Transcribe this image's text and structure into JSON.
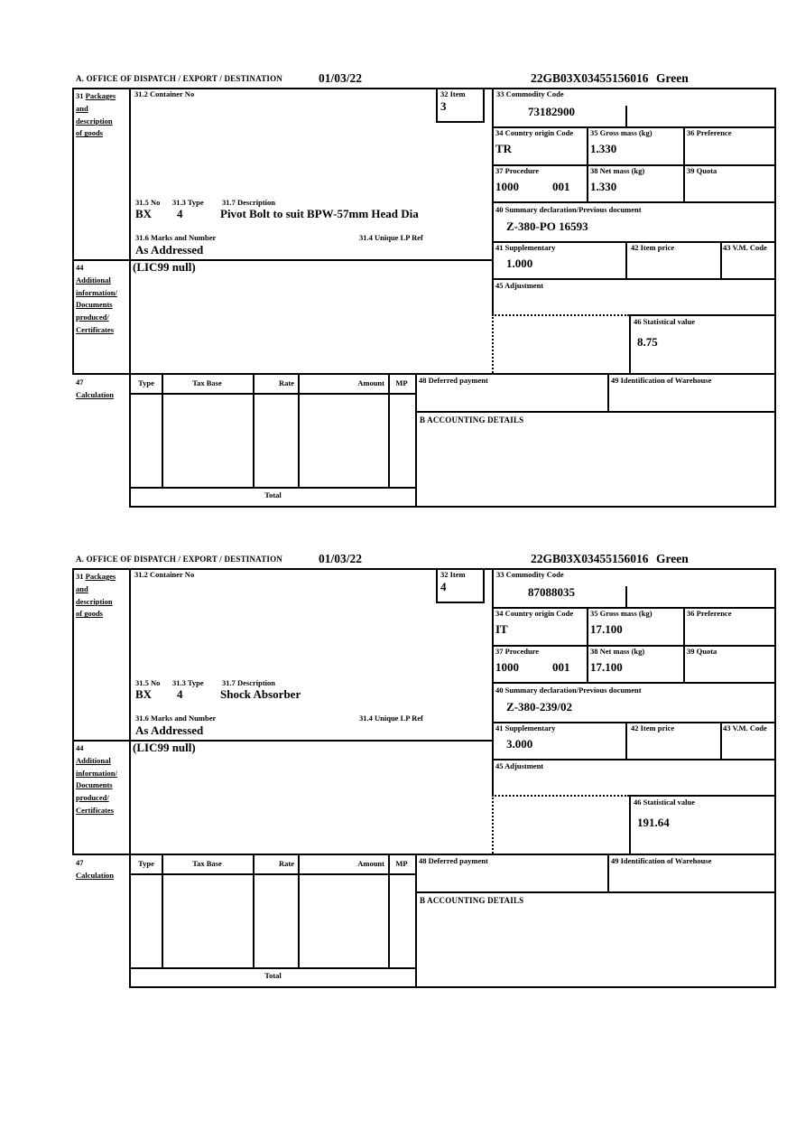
{
  "labels": {
    "office": "A.  OFFICE OF DISPATCH / EXPORT / DESTINATION",
    "b31_num": "31 ",
    "b31_l1": "Packages",
    "b31_l2": "and",
    "b31_l3": "description",
    "b31_l4": "of goods",
    "b31_2": "31.2 Container No",
    "b32": "32 Item",
    "b33": "33 Commodity Code",
    "b34": "34 Country origin Code",
    "b35": "35 Gross mass (kg)",
    "b36": "36 Preference",
    "b37": "37 Procedure",
    "b38": "38 Net mass (kg)",
    "b39": "39 Quota",
    "b40": "40 Summary declaration/Previous document",
    "b41": "41 Supplementary",
    "b42": "42 Item price",
    "b43": "43 V.M. Code",
    "b44_num": "44",
    "b44_l1": "Additional",
    "b44_l2": "information/",
    "b44_l3": "Documents",
    "b44_l4": "produced/",
    "b44_l5": "Certificates",
    "b45": "45 Adjustment",
    "b46": "46 Statistical value",
    "b47_num": "47",
    "b47_l1": "Calculation",
    "col_type": "Type",
    "col_tax_base": "Tax Base",
    "col_rate": "Rate",
    "col_amount": "Amount",
    "col_mp": "MP",
    "b48": "48 Deferred payment",
    "b49": "49 Identification of Warehouse",
    "acct": "B ACCOUNTING DETAILS",
    "total": "Total",
    "b31_5": "31.5 No",
    "b31_3": "31.3 Type",
    "b31_7": "31.7 Description",
    "b31_6": "31.6 Marks and Number",
    "b31_4": "31.4 Unique LP Ref"
  },
  "sections": [
    {
      "date": "01/03/22",
      "reference": "22GB03X03455156016",
      "status": "Green",
      "item": "3",
      "commodity_code": "73182900",
      "country_origin": "TR",
      "gross_mass": "1.330",
      "procedure": "1000",
      "procedure_ext": "001",
      "net_mass": "1.330",
      "previous_document": "Z-380-PO 16593",
      "supplementary": "1.000",
      "statistical_value": "8.75",
      "package_no": "BX",
      "package_type": "4",
      "description": "Pivot Bolt to suit BPW-57mm Head Dia",
      "marks": "As Addressed",
      "additional_info": "(LIC99 null)"
    },
    {
      "date": "01/03/22",
      "reference": "22GB03X03455156016",
      "status": "Green",
      "item": "4",
      "commodity_code": "87088035",
      "country_origin": "IT",
      "gross_mass": "17.100",
      "procedure": "1000",
      "procedure_ext": "001",
      "net_mass": "17.100",
      "previous_document": "Z-380-239/02",
      "supplementary": "3.000",
      "statistical_value": "191.64",
      "package_no": "BX",
      "package_type": "4",
      "description": "Shock Absorber",
      "marks": "As Addressed",
      "additional_info": "(LIC99 null)"
    }
  ]
}
